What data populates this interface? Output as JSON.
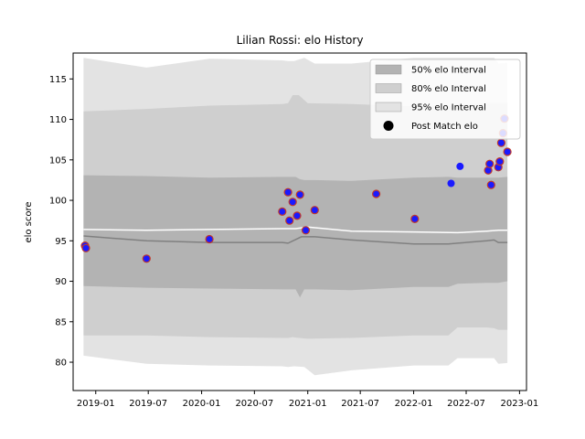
{
  "chart_data": {
    "type": "area",
    "title": "Lilian Rossi: elo History",
    "xlabel": "",
    "ylabel": "elo score",
    "xlim": [
      "2018-10-15",
      "2023-01-25"
    ],
    "ylim": [
      76.5,
      118.2
    ],
    "grid": false,
    "legend_position": "top-right",
    "x_ticks": [
      "2019-01",
      "2019-07",
      "2020-01",
      "2020-07",
      "2021-01",
      "2021-07",
      "2022-01",
      "2022-07",
      "2023-01"
    ],
    "y_ticks": [
      80,
      85,
      90,
      95,
      100,
      105,
      110,
      115
    ],
    "bands": [
      {
        "name": "95% elo Interval",
        "color": "#e3e3e3",
        "x": [
          "2018-11-20",
          "2019-06-25",
          "2020-01-28",
          "2020-10-05",
          "2020-10-25",
          "2020-11-15",
          "2020-12-20",
          "2021-01-25",
          "2021-06-01",
          "2022-01-01",
          "2022-05-01",
          "2022-06-01",
          "2022-09-10",
          "2022-10-05",
          "2022-10-20",
          "2022-11-20"
        ],
        "upper": [
          117.6,
          116.4,
          117.5,
          117.3,
          117.2,
          117.2,
          117.6,
          116.9,
          116.9,
          117.6,
          117.6,
          117.6,
          117.6,
          117.6,
          116.9,
          117.0
        ],
        "lower": [
          80.8,
          79.8,
          79.6,
          79.5,
          79.4,
          79.5,
          79.4,
          78.4,
          79.0,
          79.6,
          79.6,
          80.5,
          80.5,
          80.5,
          79.8,
          79.9
        ]
      },
      {
        "name": "80% elo Interval",
        "color": "#cfcfcf",
        "x": [
          "2018-11-20",
          "2019-06-25",
          "2020-01-28",
          "2020-10-05",
          "2020-10-25",
          "2020-11-10",
          "2020-12-01",
          "2021-01-01",
          "2021-06-01",
          "2022-01-01",
          "2022-05-01",
          "2022-06-01",
          "2022-09-10",
          "2022-10-05",
          "2022-10-20",
          "2022-11-20"
        ],
        "upper": [
          111.0,
          111.3,
          111.7,
          111.9,
          112.0,
          113.0,
          113.0,
          112.0,
          111.9,
          111.6,
          111.6,
          111.8,
          112.0,
          112.0,
          112.0,
          112.0
        ],
        "lower": [
          83.3,
          83.3,
          83.1,
          83.0,
          83.0,
          83.1,
          83.0,
          82.9,
          83.0,
          83.3,
          83.3,
          84.3,
          84.3,
          84.2,
          84.0,
          84.0
        ]
      },
      {
        "name": "50% elo Interval",
        "color": "#b3b3b3",
        "x": [
          "2018-11-20",
          "2019-06-25",
          "2020-01-28",
          "2020-10-05",
          "2020-10-25",
          "2020-11-20",
          "2020-12-05",
          "2020-12-20",
          "2021-01-25",
          "2021-06-01",
          "2022-01-01",
          "2022-05-01",
          "2022-06-01",
          "2022-09-10",
          "2022-10-05",
          "2022-10-20",
          "2022-11-20"
        ],
        "upper": [
          103.1,
          103.0,
          102.8,
          102.9,
          102.9,
          102.9,
          102.6,
          102.5,
          102.5,
          102.4,
          102.8,
          102.9,
          102.8,
          102.8,
          102.8,
          102.8,
          102.9
        ],
        "lower": [
          89.4,
          89.2,
          89.1,
          89.0,
          89.0,
          89.0,
          88.0,
          89.0,
          89.0,
          88.9,
          89.3,
          89.3,
          89.7,
          89.8,
          89.8,
          89.8,
          90.0
        ]
      }
    ],
    "lines": [
      {
        "color": "#808080",
        "x": [
          "2018-11-20",
          "2019-06-25",
          "2020-01-28",
          "2020-10-05",
          "2020-10-25",
          "2020-12-10",
          "2021-01-25",
          "2021-06-01",
          "2022-01-01",
          "2022-05-01",
          "2022-06-01",
          "2022-09-10",
          "2022-10-05",
          "2022-10-20",
          "2022-11-20"
        ],
        "y": [
          95.6,
          95.0,
          94.8,
          94.8,
          94.7,
          95.5,
          95.5,
          95.1,
          94.6,
          94.6,
          94.7,
          95.0,
          95.1,
          94.8,
          94.8
        ]
      },
      {
        "color": "#ffffff",
        "x": [
          "2018-11-20",
          "2019-06-25",
          "2020-01-28",
          "2020-10-05",
          "2020-11-20",
          "2021-01-01",
          "2021-06-01",
          "2022-01-01",
          "2022-06-01",
          "2022-09-10",
          "2022-10-20",
          "2022-11-20"
        ],
        "y": [
          96.4,
          96.3,
          96.4,
          96.5,
          96.5,
          96.7,
          96.2,
          96.1,
          96.0,
          96.2,
          96.3,
          96.3
        ]
      }
    ],
    "series": [
      {
        "name": "Post Match elo",
        "type": "scatter",
        "color": "#1a1aff",
        "edgecolor": "#c0392b",
        "points": [
          {
            "x": "2018-11-25",
            "y": 94.4,
            "edge": true
          },
          {
            "x": "2018-11-28",
            "y": 94.1,
            "edge": true
          },
          {
            "x": "2019-06-25",
            "y": 92.8,
            "edge": true
          },
          {
            "x": "2020-01-28",
            "y": 95.2,
            "edge": true
          },
          {
            "x": "2020-10-05",
            "y": 98.6,
            "edge": true
          },
          {
            "x": "2020-10-25",
            "y": 101.0,
            "edge": true
          },
          {
            "x": "2020-10-30",
            "y": 97.5,
            "edge": true
          },
          {
            "x": "2020-11-10",
            "y": 99.8,
            "edge": true
          },
          {
            "x": "2020-11-25",
            "y": 98.1,
            "edge": true
          },
          {
            "x": "2020-12-05",
            "y": 100.7,
            "edge": true
          },
          {
            "x": "2020-12-25",
            "y": 96.3,
            "edge": true
          },
          {
            "x": "2021-01-25",
            "y": 98.8,
            "edge": true
          },
          {
            "x": "2021-08-25",
            "y": 100.8,
            "edge": true
          },
          {
            "x": "2022-01-05",
            "y": 97.7,
            "edge": true
          },
          {
            "x": "2022-05-10",
            "y": 102.1,
            "edge": false
          },
          {
            "x": "2022-06-10",
            "y": 104.2,
            "edge": false
          },
          {
            "x": "2022-09-15",
            "y": 103.7,
            "edge": true
          },
          {
            "x": "2022-09-20",
            "y": 104.5,
            "edge": true
          },
          {
            "x": "2022-09-25",
            "y": 101.9,
            "edge": true
          },
          {
            "x": "2022-10-20",
            "y": 104.1,
            "edge": true
          },
          {
            "x": "2022-10-25",
            "y": 104.8,
            "edge": true
          },
          {
            "x": "2022-10-30",
            "y": 107.1,
            "edge": true
          },
          {
            "x": "2022-11-05",
            "y": 108.3,
            "edge": true
          },
          {
            "x": "2022-11-10",
            "y": 110.1,
            "edge": true
          },
          {
            "x": "2022-11-20",
            "y": 106.0,
            "edge": true
          }
        ]
      }
    ],
    "legend": [
      {
        "label": "50% elo Interval",
        "kind": "patch",
        "color": "#b3b3b3"
      },
      {
        "label": "80% elo Interval",
        "kind": "patch",
        "color": "#cfcfcf"
      },
      {
        "label": "95% elo Interval",
        "kind": "patch",
        "color": "#e3e3e3"
      },
      {
        "label": "Post Match elo",
        "kind": "marker",
        "color": "#000000"
      }
    ]
  }
}
